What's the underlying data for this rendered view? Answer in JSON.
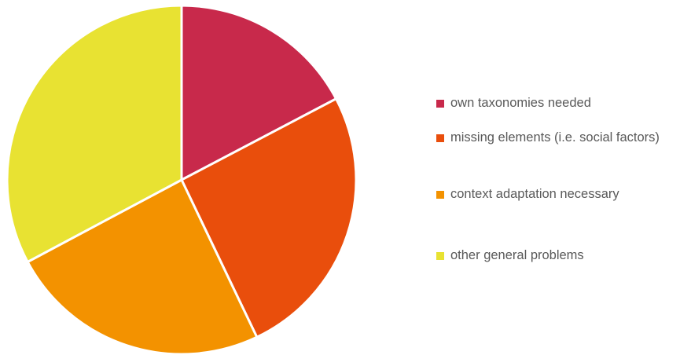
{
  "chart_data": {
    "type": "pie",
    "categories": [
      "own taxonomies needed",
      "missing elements (i.e. social factors)",
      "context adaptation necessary",
      "other general problems"
    ],
    "values": [
      17.3,
      25.6,
      24.3,
      32.8
    ],
    "colors": [
      "#c8294b",
      "#e94e0c",
      "#f39200",
      "#e8e232"
    ],
    "legend": "right"
  }
}
